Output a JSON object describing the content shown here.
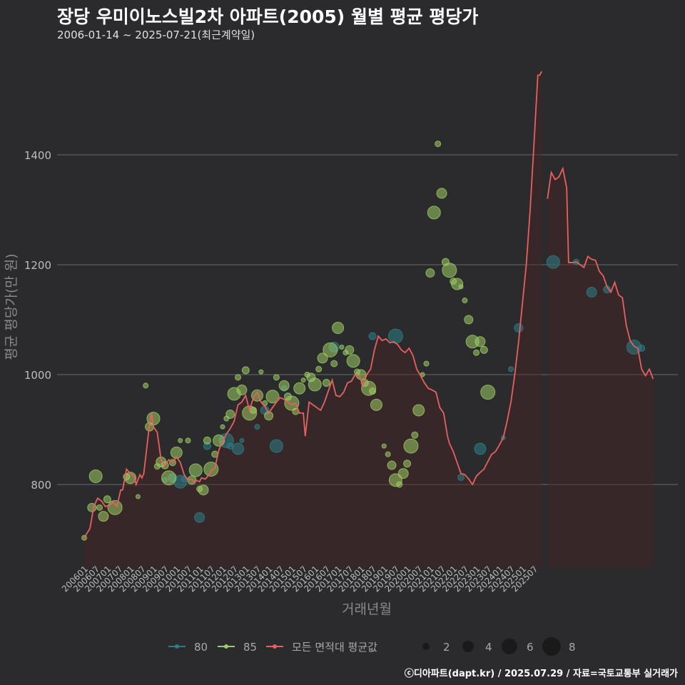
{
  "header": {
    "title": "장당 우미이노스빌2차 아파트(2005) 월별 평균 평당가",
    "subtitle": "2006-01-14 ~ 2025-07-21(최근계약일)"
  },
  "credit": "ⓒ디아파트(dapt.kr) / 2025.07.29 / 자료=국토교통부 실거래가",
  "colors": {
    "background": "#2b2b2d",
    "grid": "#6a6a6a",
    "series_80": "#2a7f86",
    "series_85": "#9ccc65",
    "avg_line": "#e8605f"
  },
  "chart_data": {
    "type": "line",
    "title": "장당 우미이노스빌2차 아파트(2005) 월별 평균 평당가",
    "xlabel": "거래년월",
    "ylabel": "평균 평당가(만 원)",
    "ylim": [
      650,
      1580
    ],
    "yticks": [
      800,
      1000,
      1200,
      1400
    ],
    "xticks": [
      "200601",
      "200607",
      "200701",
      "200707",
      "200801",
      "200807",
      "200901",
      "200907",
      "201001",
      "201007",
      "201101",
      "201107",
      "201201",
      "201207",
      "201301",
      "201307",
      "201401",
      "201407",
      "201501",
      "201507",
      "201601",
      "201607",
      "201701",
      "201707",
      "201801",
      "201807",
      "201901",
      "201907",
      "202001",
      "202007",
      "202101",
      "202107",
      "202201",
      "202207",
      "202301",
      "202307",
      "202401",
      "202407",
      "202501",
      "202507"
    ],
    "x_range_months": [
      0,
      234
    ],
    "avg_series": {
      "name": "모든 면적대 평균값",
      "points": [
        [
          0,
          703
        ],
        [
          3,
          720
        ],
        [
          5,
          760
        ],
        [
          7,
          775
        ],
        [
          9,
          770
        ],
        [
          11,
          760
        ],
        [
          13,
          762
        ],
        [
          15,
          768
        ],
        [
          17,
          760
        ],
        [
          19,
          790
        ],
        [
          20,
          790
        ],
        [
          22,
          828
        ],
        [
          24,
          820
        ],
        [
          26,
          815
        ],
        [
          27,
          800
        ],
        [
          29,
          818
        ],
        [
          30,
          812
        ],
        [
          31,
          820
        ],
        [
          33,
          880
        ],
        [
          34,
          910
        ],
        [
          35,
          930
        ],
        [
          36,
          905
        ],
        [
          38,
          895
        ],
        [
          40,
          845
        ],
        [
          42,
          835
        ],
        [
          44,
          845
        ],
        [
          46,
          840
        ],
        [
          48,
          850
        ],
        [
          50,
          840
        ],
        [
          52,
          818
        ],
        [
          54,
          808
        ],
        [
          56,
          810
        ],
        [
          57,
          805
        ],
        [
          58,
          808
        ],
        [
          60,
          805
        ],
        [
          61,
          812
        ],
        [
          63,
          810
        ],
        [
          65,
          818
        ],
        [
          66,
          825
        ],
        [
          68,
          830
        ],
        [
          70,
          862
        ],
        [
          72,
          878
        ],
        [
          74,
          892
        ],
        [
          76,
          902
        ],
        [
          78,
          915
        ],
        [
          80,
          945
        ],
        [
          82,
          950
        ],
        [
          84,
          962
        ],
        [
          86,
          935
        ],
        [
          88,
          958
        ],
        [
          90,
          968
        ],
        [
          92,
          950
        ],
        [
          94,
          942
        ],
        [
          96,
          930
        ],
        [
          98,
          940
        ],
        [
          100,
          950
        ],
        [
          102,
          958
        ],
        [
          104,
          955
        ],
        [
          106,
          950
        ],
        [
          108,
          945
        ],
        [
          110,
          948
        ],
        [
          112,
          930
        ],
        [
          114,
          930
        ],
        [
          115,
          888
        ],
        [
          117,
          950
        ],
        [
          119,
          945
        ],
        [
          121,
          940
        ],
        [
          123,
          935
        ],
        [
          125,
          950
        ],
        [
          127,
          970
        ],
        [
          129,
          990
        ],
        [
          131,
          962
        ],
        [
          133,
          960
        ],
        [
          135,
          968
        ],
        [
          137,
          985
        ],
        [
          139,
          988
        ],
        [
          141,
          1000
        ],
        [
          143,
          998
        ],
        [
          145,
          980
        ],
        [
          147,
          1000
        ],
        [
          149,
          1010
        ],
        [
          151,
          1045
        ],
        [
          153,
          1070
        ],
        [
          155,
          1062
        ],
        [
          157,
          1065
        ],
        [
          159,
          1058
        ],
        [
          161,
          1060
        ],
        [
          163,
          1055
        ],
        [
          165,
          1045
        ],
        [
          167,
          1040
        ],
        [
          169,
          1048
        ],
        [
          171,
          1035
        ],
        [
          173,
          1010
        ],
        [
          175,
          998
        ],
        [
          177,
          985
        ],
        [
          179,
          975
        ],
        [
          181,
          972
        ],
        [
          183,
          968
        ],
        [
          185,
          940
        ],
        [
          187,
          930
        ],
        [
          189,
          888
        ],
        [
          190,
          875
        ],
        [
          192,
          860
        ],
        [
          194,
          840
        ],
        [
          196,
          820
        ],
        [
          198,
          818
        ],
        [
          200,
          810
        ],
        [
          202,
          800
        ],
        [
          204,
          815
        ],
        [
          206,
          822
        ],
        [
          208,
          828
        ],
        [
          210,
          842
        ],
        [
          212,
          855
        ],
        [
          214,
          860
        ],
        [
          216,
          872
        ],
        [
          218,
          885
        ],
        [
          220,
          915
        ],
        [
          222,
          950
        ],
        [
          224,
          1000
        ],
        [
          226,
          1060
        ],
        [
          228,
          1130
        ],
        [
          230,
          1200
        ],
        [
          232,
          1300
        ],
        [
          234,
          1420
        ],
        [
          236,
          1545
        ],
        [
          237,
          1545
        ],
        [
          238,
          1552
        ]
      ],
      "points_tail": [
        [
          241,
          1320
        ],
        [
          243,
          1368
        ],
        [
          245,
          1355
        ],
        [
          247,
          1360
        ],
        [
          249,
          1375
        ],
        [
          251,
          1340
        ],
        [
          252,
          1204
        ],
        [
          254,
          1204
        ],
        [
          256,
          1205
        ],
        [
          258,
          1200
        ],
        [
          260,
          1195
        ],
        [
          262,
          1215
        ],
        [
          264,
          1210
        ],
        [
          266,
          1208
        ],
        [
          268,
          1188
        ],
        [
          270,
          1180
        ],
        [
          272,
          1160
        ],
        [
          274,
          1150
        ],
        [
          276,
          1168
        ],
        [
          278,
          1145
        ],
        [
          280,
          1140
        ],
        [
          282,
          1090
        ],
        [
          284,
          1062
        ],
        [
          286,
          1052
        ],
        [
          288,
          1048
        ],
        [
          290,
          1010
        ],
        [
          292,
          998
        ],
        [
          294,
          1010
        ],
        [
          296,
          992
        ]
      ]
    },
    "series": [
      {
        "name": "80",
        "points": [
          [
            42,
            808
          ],
          [
            46,
            812
          ],
          [
            50,
            805
          ],
          [
            52,
            810
          ],
          [
            60,
            740
          ],
          [
            64,
            870
          ],
          [
            74,
            880
          ],
          [
            76,
            870
          ],
          [
            80,
            865
          ],
          [
            82,
            880
          ],
          [
            90,
            905
          ],
          [
            94,
            935
          ],
          [
            100,
            870
          ],
          [
            104,
            975
          ],
          [
            130,
            1050
          ],
          [
            150,
            1070
          ],
          [
            162,
            1070
          ],
          [
            196,
            813
          ],
          [
            206,
            865
          ],
          [
            218,
            885
          ],
          [
            222,
            1010
          ],
          [
            226,
            1085
          ],
          [
            244,
            1205
          ],
          [
            256,
            1205
          ],
          [
            264,
            1150
          ],
          [
            272,
            1155
          ],
          [
            286,
            1050
          ],
          [
            290,
            1048
          ]
        ]
      },
      {
        "name": "85",
        "points": [
          [
            0,
            703
          ],
          [
            4,
            758
          ],
          [
            6,
            815
          ],
          [
            8,
            758
          ],
          [
            10,
            742
          ],
          [
            12,
            773
          ],
          [
            16,
            758
          ],
          [
            22,
            814
          ],
          [
            24,
            812
          ],
          [
            28,
            778
          ],
          [
            32,
            980
          ],
          [
            34,
            905
          ],
          [
            36,
            920
          ],
          [
            38,
            833
          ],
          [
            40,
            841
          ],
          [
            42,
            835
          ],
          [
            44,
            812
          ],
          [
            46,
            840
          ],
          [
            48,
            858
          ],
          [
            50,
            880
          ],
          [
            54,
            880
          ],
          [
            56,
            808
          ],
          [
            58,
            826
          ],
          [
            60,
            792
          ],
          [
            62,
            790
          ],
          [
            64,
            880
          ],
          [
            66,
            828
          ],
          [
            68,
            855
          ],
          [
            70,
            880
          ],
          [
            72,
            905
          ],
          [
            74,
            920
          ],
          [
            76,
            928
          ],
          [
            78,
            965
          ],
          [
            80,
            995
          ],
          [
            82,
            972
          ],
          [
            84,
            1008
          ],
          [
            86,
            930
          ],
          [
            88,
            935
          ],
          [
            90,
            962
          ],
          [
            92,
            1005
          ],
          [
            94,
            948
          ],
          [
            96,
            925
          ],
          [
            98,
            960
          ],
          [
            100,
            995
          ],
          [
            104,
            980
          ],
          [
            106,
            960
          ],
          [
            108,
            948
          ],
          [
            110,
            933
          ],
          [
            112,
            975
          ],
          [
            114,
            990
          ],
          [
            116,
            1000
          ],
          [
            118,
            995
          ],
          [
            120,
            982
          ],
          [
            122,
            1010
          ],
          [
            124,
            1030
          ],
          [
            126,
            985
          ],
          [
            128,
            1045
          ],
          [
            130,
            1020
          ],
          [
            132,
            1085
          ],
          [
            134,
            1050
          ],
          [
            136,
            1040
          ],
          [
            138,
            1045
          ],
          [
            140,
            1025
          ],
          [
            142,
            1005
          ],
          [
            144,
            1000
          ],
          [
            146,
            985
          ],
          [
            148,
            975
          ],
          [
            150,
            970
          ],
          [
            152,
            945
          ],
          [
            156,
            870
          ],
          [
            158,
            855
          ],
          [
            160,
            835
          ],
          [
            162,
            808
          ],
          [
            164,
            800
          ],
          [
            166,
            820
          ],
          [
            168,
            838
          ],
          [
            170,
            870
          ],
          [
            172,
            890
          ],
          [
            174,
            935
          ],
          [
            176,
            1000
          ],
          [
            178,
            1020
          ],
          [
            180,
            1185
          ],
          [
            182,
            1295
          ],
          [
            184,
            1420
          ],
          [
            186,
            1330
          ],
          [
            188,
            1205
          ],
          [
            190,
            1190
          ],
          [
            192,
            1170
          ],
          [
            194,
            1165
          ],
          [
            196,
            1160
          ],
          [
            198,
            1135
          ],
          [
            200,
            1100
          ],
          [
            202,
            1060
          ],
          [
            204,
            1040
          ],
          [
            206,
            1060
          ],
          [
            208,
            1045
          ],
          [
            210,
            968
          ]
        ]
      }
    ],
    "legend": {
      "items": [
        "80",
        "85",
        "모든 면적대 평균값"
      ],
      "size_title": "",
      "sizes": [
        "2",
        "4",
        "6",
        "8"
      ]
    }
  }
}
